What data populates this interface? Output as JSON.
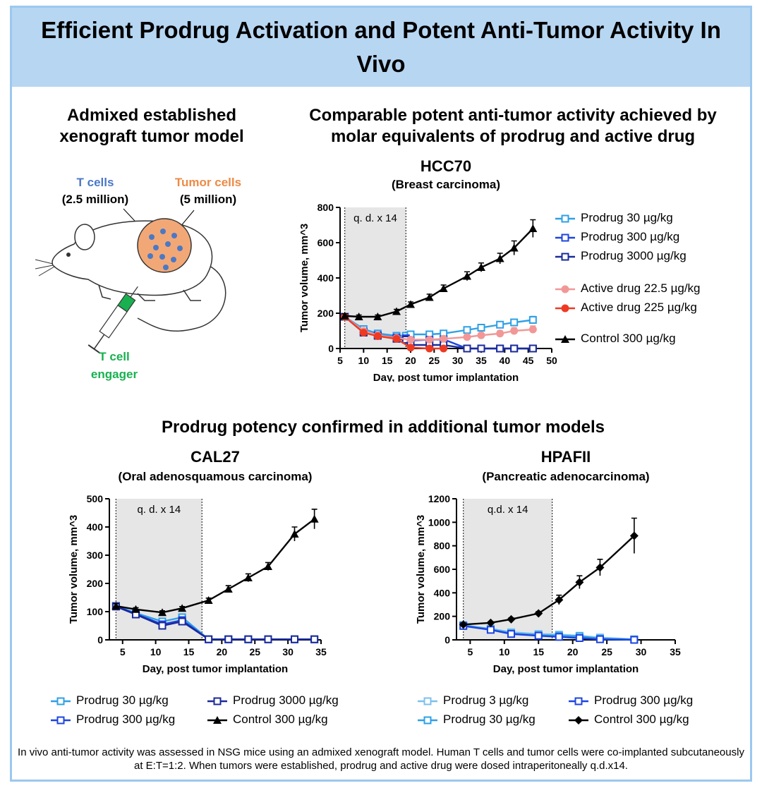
{
  "header": {
    "title": "Efficient Prodrug Activation and Potent Anti-Tumor Activity In Vivo"
  },
  "model": {
    "heading": "Admixed established xenograft tumor model",
    "t_cells_label": "T cells",
    "t_cells_count": "(2.5 million)",
    "tumor_cells_label": "Tumor cells",
    "tumor_cells_count": "(5 million)",
    "engager_line1": "T cell",
    "engager_line2": "engager"
  },
  "top_section": {
    "heading": "Comparable potent anti-tumor activity achieved by molar equivalents of prodrug and active drug"
  },
  "bottom_section": {
    "heading": "Prodrug potency confirmed in additional tumor models"
  },
  "colors": {
    "prodrug_3": "#7cc0ee",
    "prodrug_30": "#2ea0e6",
    "prodrug_300": "#1d44e0",
    "prodrug_3000": "#1a2a9a",
    "active_22_5": "#f29797",
    "active_225": "#ee3a22",
    "control": "#000000",
    "dosing_window": "#e6e6e6",
    "t_cells": "#4a78c6",
    "tumor_cells": "#ee8a44",
    "engager": "#19b050"
  },
  "caption": "In vivo anti-tumor activity was assessed in NSG mice using an admixed xenograft model. Human T cells and tumor cells were co-implanted subcutaneously at E:T=1:2. When tumors were established, prodrug and active drug were dosed intraperitoneally q.d.x14.",
  "chart_data": [
    {
      "type": "line",
      "title": "HCC70",
      "subtitle": "(Breast carcinoma)",
      "xlabel": "Day, post tumor implantation",
      "ylabel": "Tumor volume, mm^3",
      "xlim": [
        5,
        50
      ],
      "ylim": [
        0,
        800
      ],
      "xticks": [
        5,
        10,
        15,
        20,
        25,
        30,
        35,
        40,
        45,
        50
      ],
      "yticks": [
        0,
        200,
        400,
        600,
        800
      ],
      "dosing_window": [
        6,
        19
      ],
      "dosing_label": "q. d. x 14",
      "series": [
        {
          "name": "Prodrug 30 µg/kg",
          "color_key": "prodrug_30",
          "marker": "square-open",
          "x": [
            6,
            10,
            13,
            17,
            19,
            20,
            24,
            27,
            32,
            35,
            39,
            42,
            46
          ],
          "y": [
            180,
            110,
            85,
            72,
            72,
            80,
            80,
            85,
            105,
            118,
            135,
            148,
            162
          ],
          "err": [
            12,
            10,
            8,
            8,
            8,
            8,
            8,
            10,
            12,
            14,
            16,
            18,
            20
          ]
        },
        {
          "name": "Prodrug 300 µg/kg",
          "color_key": "prodrug_300",
          "marker": "square-open",
          "x": [
            6,
            10,
            13,
            17,
            19,
            20,
            24,
            27,
            32,
            35,
            39,
            42,
            46
          ],
          "y": [
            180,
            95,
            75,
            62,
            58,
            45,
            50,
            52,
            0,
            0,
            0,
            0,
            0
          ],
          "err": [
            12,
            10,
            8,
            8,
            8,
            8,
            8,
            8,
            0,
            0,
            0,
            0,
            0
          ]
        },
        {
          "name": "Prodrug 3000 µg/kg",
          "color_key": "prodrug_3000",
          "marker": "square-open",
          "x": [
            6,
            10,
            13,
            17,
            19,
            20,
            24,
            27,
            32,
            35,
            39,
            42,
            46
          ],
          "y": [
            180,
            90,
            72,
            55,
            50,
            20,
            20,
            20,
            0,
            0,
            0,
            0,
            0
          ],
          "err": [
            12,
            10,
            8,
            8,
            8,
            6,
            6,
            6,
            0,
            0,
            0,
            0,
            0
          ]
        },
        {
          "name": "Active drug 22.5 µg/kg",
          "color_key": "active_22_5",
          "marker": "circle",
          "x": [
            6,
            10,
            13,
            17,
            20,
            24,
            27,
            32,
            35,
            39,
            42,
            46
          ],
          "y": [
            180,
            100,
            75,
            60,
            50,
            50,
            55,
            65,
            75,
            85,
            100,
            108
          ],
          "err": [
            12,
            10,
            8,
            8,
            8,
            8,
            10,
            12,
            14,
            16,
            18,
            20
          ]
        },
        {
          "name": "Active drug 225 µg/kg",
          "color_key": "active_225",
          "marker": "circle",
          "x": [
            6,
            10,
            13,
            17,
            20,
            24,
            27
          ],
          "y": [
            180,
            90,
            70,
            55,
            5,
            0,
            0
          ],
          "err": [
            12,
            10,
            8,
            8,
            4,
            0,
            0
          ]
        },
        {
          "name": "Control 300 µg/kg",
          "color_key": "control",
          "marker": "triangle",
          "x": [
            6,
            9,
            13,
            17,
            20,
            24,
            27,
            32,
            35,
            39,
            42,
            46
          ],
          "y": [
            185,
            180,
            180,
            210,
            250,
            290,
            340,
            410,
            460,
            510,
            570,
            680
          ],
          "err": [
            12,
            10,
            10,
            12,
            14,
            18,
            20,
            25,
            25,
            30,
            40,
            50
          ]
        }
      ]
    },
    {
      "type": "line",
      "title": "CAL27",
      "subtitle": "(Oral adenosquamous carcinoma)",
      "xlabel": "Day, post tumor implantation",
      "ylabel": "Tumor volume, mm^3",
      "xlim": [
        3,
        35
      ],
      "ylim": [
        0,
        500
      ],
      "xticks": [
        5,
        10,
        15,
        20,
        25,
        30,
        35
      ],
      "yticks": [
        0,
        100,
        200,
        300,
        400,
        500
      ],
      "dosing_window": [
        4,
        17
      ],
      "dosing_label": "q. d. x 14",
      "series": [
        {
          "name": "Prodrug 30 µg/kg",
          "color_key": "prodrug_30",
          "marker": "square-open",
          "x": [
            4,
            7,
            11,
            14,
            18,
            21,
            24,
            27,
            31,
            34
          ],
          "y": [
            120,
            95,
            65,
            80,
            2,
            2,
            2,
            2,
            2,
            2
          ],
          "err": [
            8,
            8,
            8,
            8,
            0,
            0,
            0,
            0,
            0,
            0
          ]
        },
        {
          "name": "Prodrug 300 µg/kg",
          "color_key": "prodrug_300",
          "marker": "square-open",
          "x": [
            4,
            7,
            11,
            14,
            18,
            21,
            24,
            27,
            31,
            34
          ],
          "y": [
            120,
            92,
            55,
            70,
            2,
            2,
            2,
            2,
            2,
            2
          ],
          "err": [
            8,
            8,
            8,
            8,
            0,
            0,
            0,
            0,
            0,
            0
          ]
        },
        {
          "name": "Prodrug 3000 µg/kg",
          "color_key": "prodrug_3000",
          "marker": "square-open",
          "x": [
            4,
            7,
            11,
            14,
            18,
            21,
            24,
            27,
            31,
            34
          ],
          "y": [
            118,
            90,
            50,
            65,
            2,
            2,
            2,
            2,
            2,
            2
          ],
          "err": [
            8,
            8,
            8,
            8,
            0,
            0,
            0,
            0,
            0,
            0
          ]
        },
        {
          "name": "Control 300 µg/kg",
          "color_key": "control",
          "marker": "triangle",
          "x": [
            4,
            7,
            11,
            14,
            18,
            21,
            24,
            27,
            31,
            34
          ],
          "y": [
            120,
            108,
            97,
            112,
            140,
            180,
            220,
            260,
            375,
            428
          ],
          "err": [
            8,
            6,
            6,
            6,
            8,
            12,
            14,
            14,
            25,
            35
          ]
        }
      ]
    },
    {
      "type": "line",
      "title": "HPAFII",
      "subtitle": "(Pancreatic adenocarcinoma)",
      "xlabel": "Day, post tumor implantation",
      "ylabel": "Tumor volume, mm^3",
      "xlim": [
        3,
        35
      ],
      "ylim": [
        0,
        1200
      ],
      "xticks": [
        5,
        10,
        15,
        20,
        25,
        30,
        35
      ],
      "yticks": [
        0,
        200,
        400,
        600,
        800,
        1000,
        1200
      ],
      "dosing_window": [
        4,
        17
      ],
      "dosing_label": "q.d. x 14",
      "series": [
        {
          "name": "Prodrug 3 µg/kg",
          "color_key": "prodrug_3",
          "marker": "square-open",
          "x": [
            4,
            8,
            11,
            15,
            18,
            21,
            24,
            29
          ],
          "y": [
            120,
            95,
            65,
            50,
            45,
            35,
            20,
            5
          ],
          "err": [
            10,
            10,
            10,
            10,
            10,
            10,
            8,
            4
          ]
        },
        {
          "name": "Prodrug 30 µg/kg",
          "color_key": "prodrug_30",
          "marker": "square-open",
          "x": [
            4,
            8,
            11,
            15,
            18,
            21,
            24,
            29
          ],
          "y": [
            125,
            90,
            55,
            40,
            35,
            30,
            10,
            3
          ],
          "err": [
            10,
            10,
            10,
            10,
            10,
            10,
            6,
            3
          ]
        },
        {
          "name": "Prodrug 300 µg/kg",
          "color_key": "prodrug_300",
          "marker": "square-open",
          "x": [
            4,
            8,
            11,
            15,
            18,
            21,
            24,
            29
          ],
          "y": [
            118,
            85,
            50,
            35,
            25,
            15,
            5,
            0
          ],
          "err": [
            10,
            10,
            10,
            10,
            8,
            6,
            4,
            0
          ]
        },
        {
          "name": "Control 300 µg/kg",
          "color_key": "control",
          "marker": "diamond",
          "x": [
            4,
            8,
            11,
            15,
            18,
            21,
            24,
            29
          ],
          "y": [
            130,
            145,
            175,
            225,
            340,
            490,
            615,
            885
          ],
          "err": [
            10,
            10,
            12,
            15,
            40,
            55,
            70,
            150
          ]
        }
      ]
    }
  ]
}
